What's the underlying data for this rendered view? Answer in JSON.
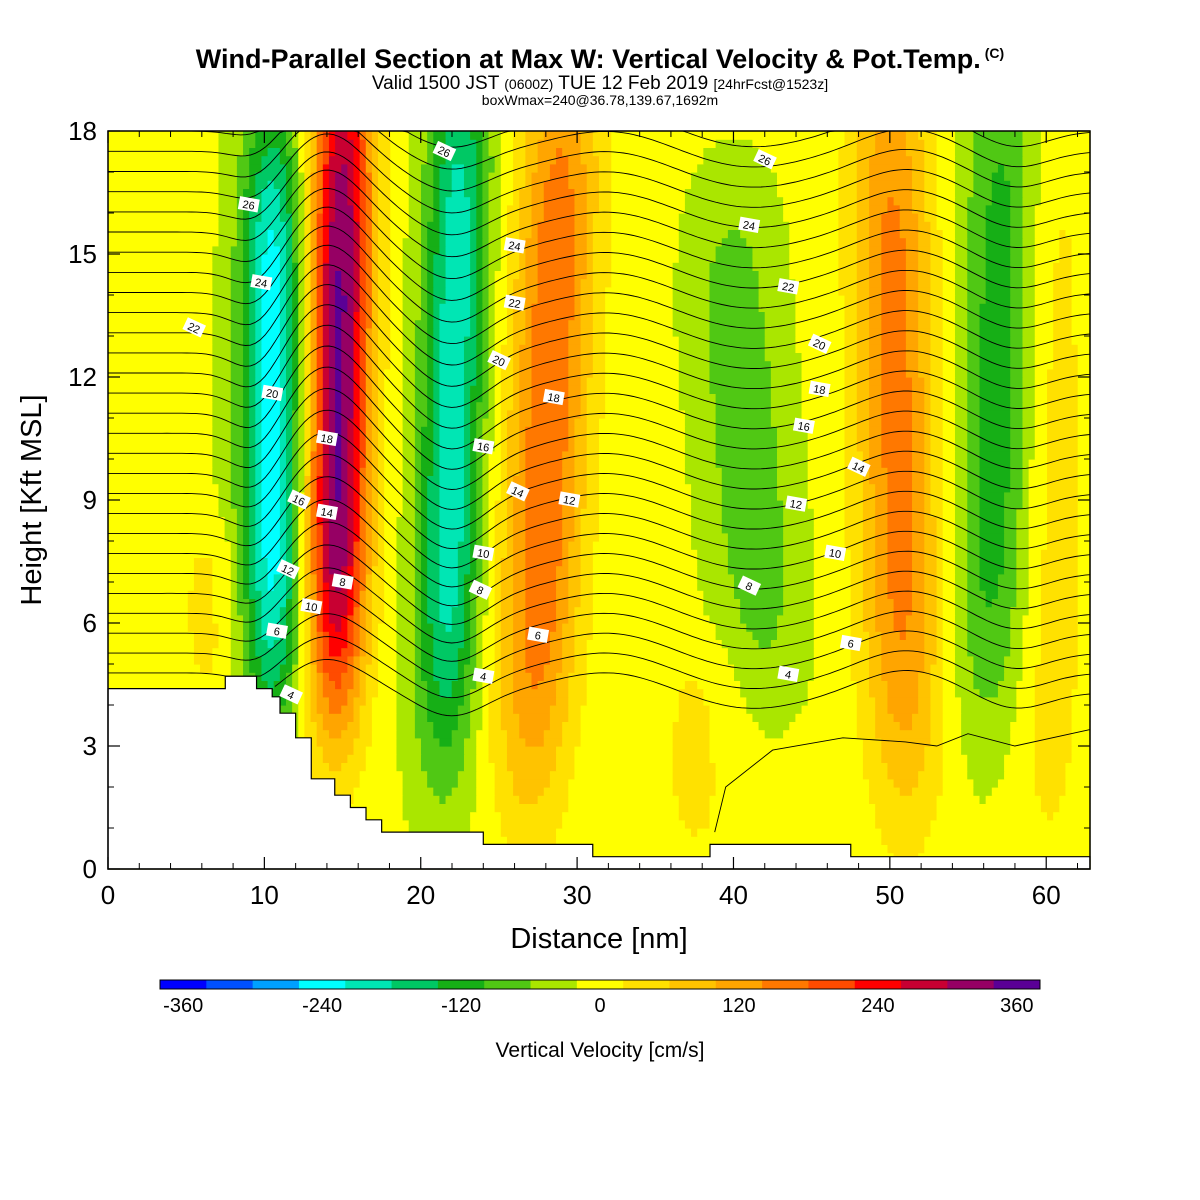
{
  "header": {
    "title_main": "Wind-Parallel Section at Max W: Vertical Velocity & Pot.Temp.",
    "title_mark": "(C)",
    "valid_prefix": "Valid 1500 JST",
    "valid_utc": "(0600Z)",
    "valid_date": "TUE 12 Feb 2019",
    "forecast": "[24hrFcst@1523z]",
    "box_info": "boxWmax=240@36.78,139.67,1692m"
  },
  "colors": {
    "palette": [
      "#0000ff",
      "#0050ff",
      "#00a0ff",
      "#00ffff",
      "#00e6b4",
      "#00c864",
      "#16af16",
      "#50c814",
      "#aae600",
      "#ffff00",
      "#ffe100",
      "#ffc300",
      "#ffa500",
      "#ff7800",
      "#ff4b00",
      "#ff0000",
      "#c80032",
      "#960064",
      "#5a0096"
    ],
    "terrain": "#ffffff",
    "contour": "#000000"
  },
  "chart_data": {
    "type": "heatmap",
    "xlabel": "Distance [nm]",
    "ylabel": "Height [Kft MSL]",
    "xlim": [
      0,
      62.8
    ],
    "ylim": [
      0,
      18
    ],
    "xticks": [
      "0",
      "10",
      "20",
      "30",
      "40",
      "50",
      "60"
    ],
    "yticks": [
      "0",
      "3",
      "6",
      "9",
      "12",
      "15",
      "18"
    ],
    "colorbar": {
      "title": "Vertical Velocity [cm/s]",
      "labels": [
        "-360",
        "-240",
        "-120",
        "0",
        "120",
        "240",
        "360"
      ],
      "levels": [
        -360,
        -320,
        -280,
        -240,
        -200,
        -160,
        -120,
        -80,
        -40,
        0,
        40,
        80,
        120,
        160,
        200,
        240,
        280,
        320,
        360,
        400
      ]
    },
    "updrafts": [
      {
        "x_base": 14.5,
        "x_top": 15.0,
        "y_base": 4.0,
        "y_top": 18,
        "peak_w": 360
      },
      {
        "x_base": 27.0,
        "x_top": 29.0,
        "y_base": 2.0,
        "y_top": 18,
        "peak_w": 190
      },
      {
        "x_base": 37.5,
        "x_top": 37.5,
        "y_base": 0.5,
        "y_top": 3.0,
        "peak_w": 40
      },
      {
        "x_base": 51.0,
        "x_top": 50.0,
        "y_base": 2.0,
        "y_top": 18,
        "peak_w": 170
      },
      {
        "x_base": 60.0,
        "x_top": 60.0,
        "y_base": 0.5,
        "y_top": 18,
        "peak_w": 60
      },
      {
        "x_base": 6.5,
        "x_top": 6.5,
        "y_base": 4.5,
        "y_top": 6.0,
        "peak_w": 40
      }
    ],
    "downdrafts": [
      {
        "x_base": 10.5,
        "x_top": 10.5,
        "y_base": 4.0,
        "y_top": 16,
        "peak_w": -240
      },
      {
        "x_base": 21.5,
        "x_top": 22.5,
        "y_base": 3.0,
        "y_top": 18,
        "peak_w": -200
      },
      {
        "x_base": 42.0,
        "x_top": 40.0,
        "y_base": 5.0,
        "y_top": 14,
        "peak_w": -80
      },
      {
        "x_base": 56.5,
        "x_top": 57.5,
        "y_base": 4.0,
        "y_top": 18,
        "peak_w": -120
      }
    ],
    "terrain_kft": [
      [
        0,
        4.4
      ],
      [
        7.5,
        4.4
      ],
      [
        7.5,
        4.7
      ],
      [
        9.5,
        4.7
      ],
      [
        9.5,
        4.4
      ],
      [
        10.5,
        4.4
      ],
      [
        10.5,
        4.2
      ],
      [
        11.0,
        4.2
      ],
      [
        11.0,
        3.8
      ],
      [
        12.0,
        3.8
      ],
      [
        12.0,
        3.2
      ],
      [
        13.0,
        3.2
      ],
      [
        13.0,
        2.2
      ],
      [
        14.5,
        2.2
      ],
      [
        14.5,
        1.8
      ],
      [
        15.5,
        1.8
      ],
      [
        15.5,
        1.5
      ],
      [
        16.5,
        1.5
      ],
      [
        16.5,
        1.2
      ],
      [
        17.5,
        1.2
      ],
      [
        17.5,
        0.9
      ],
      [
        24.0,
        0.9
      ],
      [
        24.0,
        0.6
      ],
      [
        31.0,
        0.6
      ],
      [
        31.0,
        0.3
      ],
      [
        38.5,
        0.3
      ],
      [
        38.5,
        0.6
      ],
      [
        47.5,
        0.6
      ],
      [
        47.5,
        0.3
      ],
      [
        62.8,
        0.3
      ]
    ],
    "theta_labels": [
      {
        "text": "4",
        "x": 11.7,
        "y": 4.25
      },
      {
        "text": "6",
        "x": 10.8,
        "y": 5.8
      },
      {
        "text": "10",
        "x": 13.0,
        "y": 6.4
      },
      {
        "text": "12",
        "x": 11.5,
        "y": 7.3
      },
      {
        "text": "8",
        "x": 15.0,
        "y": 7.0
      },
      {
        "text": "14",
        "x": 14.0,
        "y": 8.7
      },
      {
        "text": "16",
        "x": 12.2,
        "y": 9.0
      },
      {
        "text": "18",
        "x": 14.0,
        "y": 10.5
      },
      {
        "text": "20",
        "x": 10.5,
        "y": 11.6
      },
      {
        "text": "22",
        "x": 5.5,
        "y": 13.2
      },
      {
        "text": "24",
        "x": 9.8,
        "y": 14.3
      },
      {
        "text": "26",
        "x": 9.0,
        "y": 16.2
      },
      {
        "text": "26",
        "x": 21.5,
        "y": 17.5
      },
      {
        "text": "24",
        "x": 26.0,
        "y": 15.2
      },
      {
        "text": "22",
        "x": 26.0,
        "y": 13.8
      },
      {
        "text": "20",
        "x": 25.0,
        "y": 12.4
      },
      {
        "text": "18",
        "x": 28.5,
        "y": 11.5
      },
      {
        "text": "16",
        "x": 24.0,
        "y": 10.3
      },
      {
        "text": "14",
        "x": 26.2,
        "y": 9.2
      },
      {
        "text": "12",
        "x": 29.5,
        "y": 9.0
      },
      {
        "text": "10",
        "x": 24.0,
        "y": 7.7
      },
      {
        "text": "8",
        "x": 23.8,
        "y": 6.8
      },
      {
        "text": "6",
        "x": 27.5,
        "y": 5.7
      },
      {
        "text": "4",
        "x": 24.0,
        "y": 4.7
      },
      {
        "text": "26",
        "x": 42.0,
        "y": 17.3
      },
      {
        "text": "24",
        "x": 41.0,
        "y": 15.7
      },
      {
        "text": "22",
        "x": 43.5,
        "y": 14.2
      },
      {
        "text": "20",
        "x": 45.5,
        "y": 12.8
      },
      {
        "text": "18",
        "x": 45.5,
        "y": 11.7
      },
      {
        "text": "16",
        "x": 44.5,
        "y": 10.8
      },
      {
        "text": "14",
        "x": 48.0,
        "y": 9.8
      },
      {
        "text": "12",
        "x": 44.0,
        "y": 8.9
      },
      {
        "text": "10",
        "x": 46.5,
        "y": 7.7
      },
      {
        "text": "8",
        "x": 41.0,
        "y": 6.9
      },
      {
        "text": "6",
        "x": 47.5,
        "y": 5.5
      },
      {
        "text": "4",
        "x": 43.5,
        "y": 4.75
      }
    ]
  }
}
